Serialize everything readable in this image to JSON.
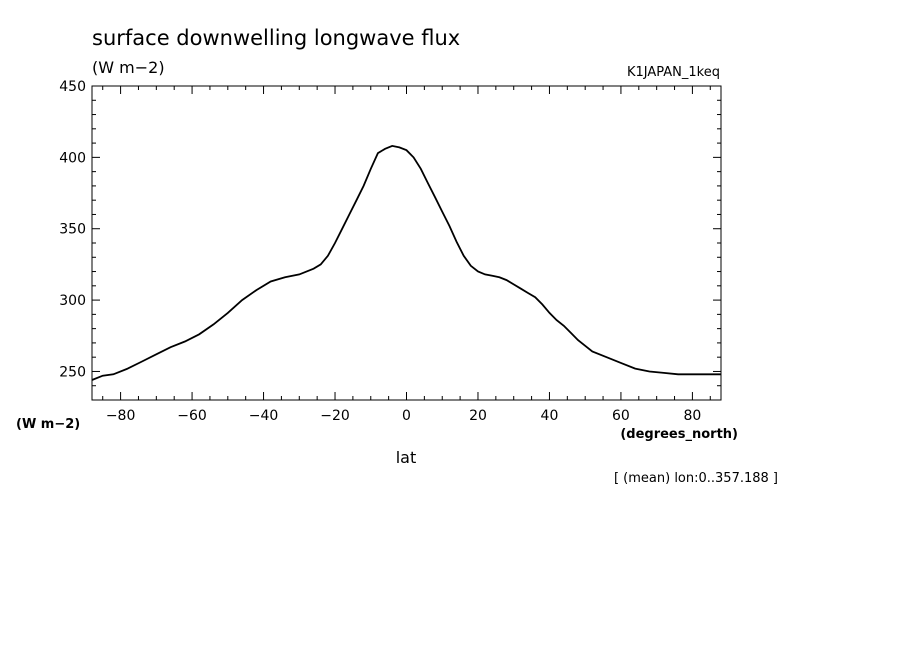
{
  "chart_data": {
    "type": "line",
    "title": "surface downwelling longwave flux",
    "title_units": "(W m−2)",
    "dataset": "K1JAPAN_1keq",
    "ylabel": "(W m−2)",
    "xlabel": "lat",
    "xunits": "(degrees_north)",
    "footnote": "[ (mean) lon:0..357.188 ]",
    "xlim": [
      -88,
      88
    ],
    "ylim": [
      230,
      450
    ],
    "xticks": [
      -80,
      -60,
      -40,
      -20,
      0,
      20,
      40,
      60,
      80
    ],
    "xtick_labels": [
      "−80",
      "−60",
      "−40",
      "−20",
      "0",
      "20",
      "40",
      "60",
      "80"
    ],
    "yticks": [
      250,
      300,
      350,
      400,
      450
    ],
    "ytick_labels": [
      "250",
      "300",
      "350",
      "400",
      "450"
    ],
    "grid": false,
    "series": [
      {
        "x": [
          -88,
          -85,
          -82,
          -78,
          -74,
          -70,
          -66,
          -62,
          -58,
          -54,
          -50,
          -46,
          -42,
          -38,
          -34,
          -30,
          -26,
          -24,
          -22,
          -20,
          -18,
          -16,
          -14,
          -12,
          -10,
          -8,
          -6,
          -4,
          -2,
          0,
          2,
          4,
          6,
          8,
          10,
          12,
          14,
          16,
          18,
          20,
          22,
          24,
          26,
          28,
          30,
          32,
          34,
          36,
          38,
          40,
          42,
          44,
          46,
          48,
          50,
          52,
          56,
          60,
          64,
          68,
          72,
          76,
          80,
          84,
          88
        ],
        "y": [
          244,
          247,
          248,
          252,
          257,
          262,
          267,
          271,
          276,
          283,
          291,
          300,
          307,
          313,
          316,
          318,
          322,
          325,
          331,
          340,
          350,
          360,
          370,
          380,
          392,
          403,
          406,
          408,
          407,
          405,
          400,
          392,
          382,
          372,
          362,
          352,
          341,
          331,
          324,
          320,
          318,
          317,
          316,
          314,
          311,
          308,
          305,
          302,
          297,
          291,
          286,
          282,
          277,
          272,
          268,
          264,
          260,
          256,
          252,
          250,
          249,
          248,
          248,
          248,
          248
        ]
      }
    ]
  }
}
